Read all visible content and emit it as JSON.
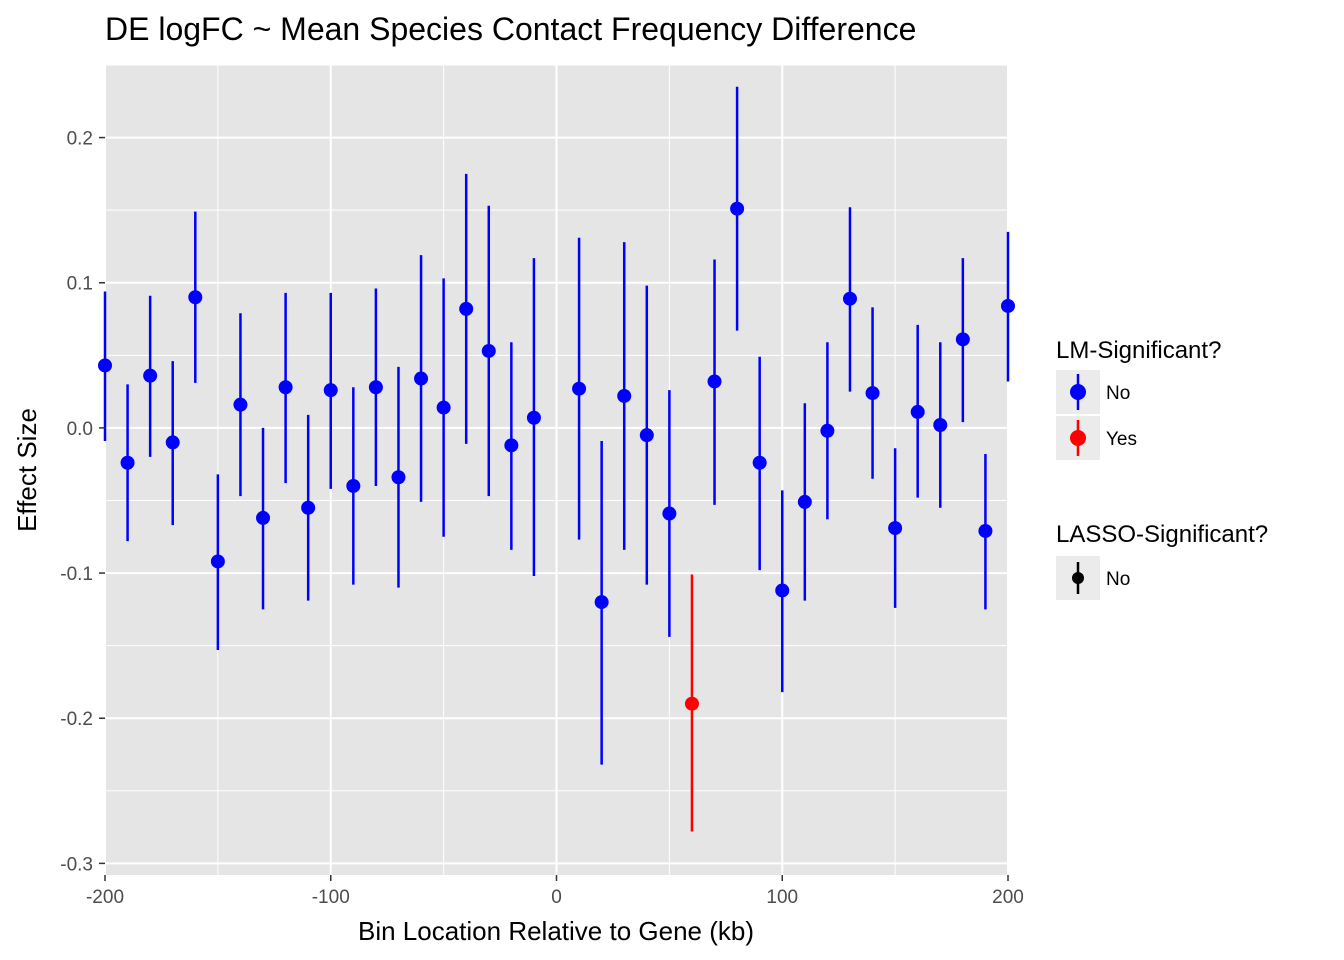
{
  "chart_data": {
    "type": "scatter",
    "title": "DE logFC ~ Mean Species Contact Frequency Difference",
    "xlabel": "Bin Location Relative to Gene (kb)",
    "ylabel": "Effect Size",
    "xlim": [
      -200,
      200
    ],
    "ylim": [
      -0.3,
      0.25
    ],
    "x_ticks": [
      -200,
      -100,
      0,
      100,
      200
    ],
    "x_tick_labels": [
      "-200",
      "-100",
      "0",
      "100",
      "200"
    ],
    "y_ticks": [
      -0.3,
      -0.2,
      -0.1,
      0.0,
      0.1,
      0.2
    ],
    "y_tick_labels": [
      "-0.3",
      "-0.2",
      "-0.1",
      "0.0",
      "0.1",
      "0.2"
    ],
    "grid": true,
    "legend_position": "right",
    "legends": [
      {
        "title": "LM-Significant?",
        "entries": [
          {
            "label": "No",
            "color": "#0000ff"
          },
          {
            "label": "Yes",
            "color": "#ff0000"
          }
        ]
      },
      {
        "title": "LASSO-Significant?",
        "entries": [
          {
            "label": "No",
            "color": "#000000"
          }
        ]
      }
    ],
    "points": [
      {
        "x": -200,
        "y": 0.043,
        "lo": -0.009,
        "hi": 0.094,
        "lm": "No"
      },
      {
        "x": -190,
        "y": -0.024,
        "lo": -0.078,
        "hi": 0.03,
        "lm": "No"
      },
      {
        "x": -180,
        "y": 0.036,
        "lo": -0.02,
        "hi": 0.091,
        "lm": "No"
      },
      {
        "x": -170,
        "y": -0.01,
        "lo": -0.067,
        "hi": 0.046,
        "lm": "No"
      },
      {
        "x": -160,
        "y": 0.09,
        "lo": 0.031,
        "hi": 0.149,
        "lm": "No"
      },
      {
        "x": -150,
        "y": -0.092,
        "lo": -0.153,
        "hi": -0.032,
        "lm": "No"
      },
      {
        "x": -140,
        "y": 0.016,
        "lo": -0.047,
        "hi": 0.079,
        "lm": "No"
      },
      {
        "x": -130,
        "y": -0.062,
        "lo": -0.125,
        "hi": 0.0,
        "lm": "No"
      },
      {
        "x": -120,
        "y": 0.028,
        "lo": -0.038,
        "hi": 0.093,
        "lm": "No"
      },
      {
        "x": -110,
        "y": -0.055,
        "lo": -0.119,
        "hi": 0.009,
        "lm": "No"
      },
      {
        "x": -100,
        "y": 0.026,
        "lo": -0.042,
        "hi": 0.093,
        "lm": "No"
      },
      {
        "x": -90,
        "y": -0.04,
        "lo": -0.108,
        "hi": 0.028,
        "lm": "No"
      },
      {
        "x": -80,
        "y": 0.028,
        "lo": -0.04,
        "hi": 0.096,
        "lm": "No"
      },
      {
        "x": -70,
        "y": -0.034,
        "lo": -0.11,
        "hi": 0.042,
        "lm": "No"
      },
      {
        "x": -60,
        "y": 0.034,
        "lo": -0.051,
        "hi": 0.119,
        "lm": "No"
      },
      {
        "x": -50,
        "y": 0.014,
        "lo": -0.075,
        "hi": 0.103,
        "lm": "No"
      },
      {
        "x": -40,
        "y": 0.082,
        "lo": -0.011,
        "hi": 0.175,
        "lm": "No"
      },
      {
        "x": -30,
        "y": 0.053,
        "lo": -0.047,
        "hi": 0.153,
        "lm": "No"
      },
      {
        "x": -20,
        "y": -0.012,
        "lo": -0.084,
        "hi": 0.059,
        "lm": "No"
      },
      {
        "x": -10,
        "y": 0.007,
        "lo": -0.102,
        "hi": 0.117,
        "lm": "No"
      },
      {
        "x": 10,
        "y": 0.027,
        "lo": -0.077,
        "hi": 0.131,
        "lm": "No"
      },
      {
        "x": 20,
        "y": -0.12,
        "lo": -0.232,
        "hi": -0.009,
        "lm": "No"
      },
      {
        "x": 30,
        "y": 0.022,
        "lo": -0.084,
        "hi": 0.128,
        "lm": "No"
      },
      {
        "x": 40,
        "y": -0.005,
        "lo": -0.108,
        "hi": 0.098,
        "lm": "No"
      },
      {
        "x": 50,
        "y": -0.059,
        "lo": -0.144,
        "hi": 0.026,
        "lm": "No"
      },
      {
        "x": 60,
        "y": -0.19,
        "lo": -0.278,
        "hi": -0.101,
        "lm": "Yes"
      },
      {
        "x": 70,
        "y": 0.032,
        "lo": -0.053,
        "hi": 0.116,
        "lm": "No"
      },
      {
        "x": 80,
        "y": 0.151,
        "lo": 0.067,
        "hi": 0.235,
        "lm": "No"
      },
      {
        "x": 90,
        "y": -0.024,
        "lo": -0.098,
        "hi": 0.049,
        "lm": "No"
      },
      {
        "x": 100,
        "y": -0.112,
        "lo": -0.182,
        "hi": -0.043,
        "lm": "No"
      },
      {
        "x": 110,
        "y": -0.051,
        "lo": -0.119,
        "hi": 0.017,
        "lm": "No"
      },
      {
        "x": 120,
        "y": -0.002,
        "lo": -0.063,
        "hi": 0.059,
        "lm": "No"
      },
      {
        "x": 130,
        "y": 0.089,
        "lo": 0.025,
        "hi": 0.152,
        "lm": "No"
      },
      {
        "x": 140,
        "y": 0.024,
        "lo": -0.035,
        "hi": 0.083,
        "lm": "No"
      },
      {
        "x": 150,
        "y": -0.069,
        "lo": -0.124,
        "hi": -0.014,
        "lm": "No"
      },
      {
        "x": 160,
        "y": 0.011,
        "lo": -0.048,
        "hi": 0.071,
        "lm": "No"
      },
      {
        "x": 170,
        "y": 0.002,
        "lo": -0.055,
        "hi": 0.059,
        "lm": "No"
      },
      {
        "x": 180,
        "y": 0.061,
        "lo": 0.004,
        "hi": 0.117,
        "lm": "No"
      },
      {
        "x": 190,
        "y": -0.071,
        "lo": -0.125,
        "hi": -0.018,
        "lm": "No"
      },
      {
        "x": 200,
        "y": 0.084,
        "lo": 0.032,
        "hi": 0.135,
        "lm": "No"
      }
    ],
    "colors": {
      "panel_bg": "#e5e5e5",
      "grid": "#ffffff",
      "lm_no": "#0000ff",
      "lm_yes": "#ff0000",
      "lasso_no": "#000000",
      "legend_key_bg": "#ebebeb"
    }
  }
}
